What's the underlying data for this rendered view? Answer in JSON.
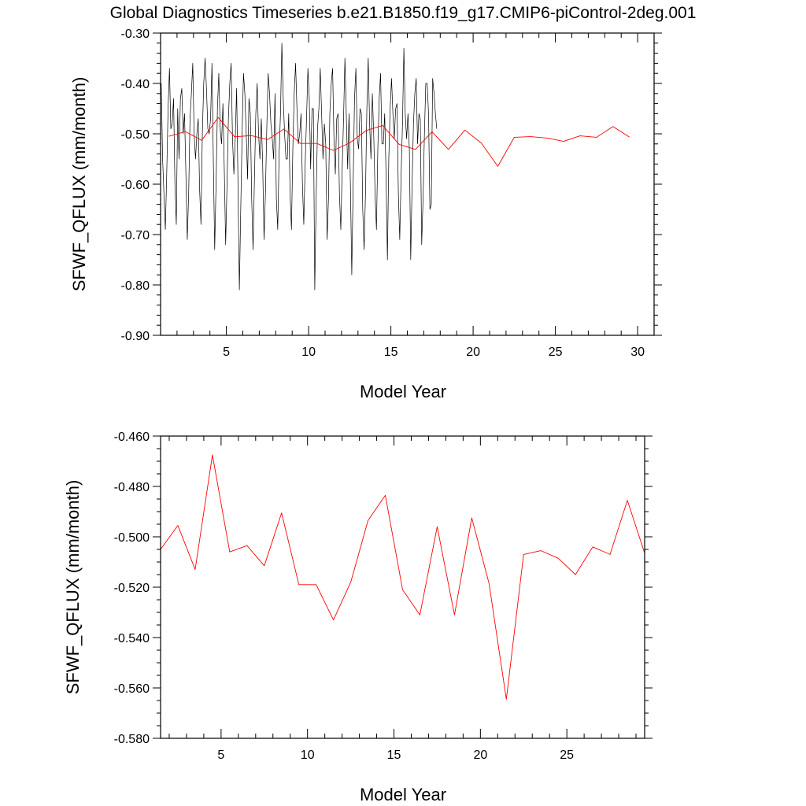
{
  "title": "Global Diagnostics Timeseries b.e21.B1850.f19_g17.CMIP6-piControl-2deg.001",
  "colors": {
    "monthly": "#000000",
    "annual": "#ff0000",
    "axis": "#000000"
  },
  "top_chart": {
    "xlabel": "Model Year",
    "ylabel": "SFWF_QFLUX (mm/month)",
    "xticks": [
      5,
      10,
      15,
      20,
      25,
      30
    ],
    "yticks": [
      "-0.30",
      "-0.40",
      "-0.50",
      "-0.60",
      "-0.70",
      "-0.80",
      "-0.90"
    ]
  },
  "bottom_chart": {
    "xlabel": "Model Year",
    "ylabel": "SFWF_QFLUX (mm/month)",
    "xticks": [
      5,
      10,
      15,
      20,
      25
    ],
    "yticks": [
      "-0.460",
      "-0.480",
      "-0.500",
      "-0.520",
      "-0.540",
      "-0.560",
      "-0.580"
    ]
  },
  "chart_data": [
    {
      "type": "line",
      "xlabel": "Model Year",
      "ylabel": "SFWF_QFLUX (mm/month)",
      "xlim": [
        1,
        31
      ],
      "ylim": [
        -0.9,
        -0.3
      ],
      "series": [
        {
          "style": "monthly (black)",
          "x_start": 1.04,
          "x_step": 0.08333,
          "values": [
            -0.4,
            -0.55,
            -0.62,
            -0.69,
            -0.58,
            -0.45,
            -0.37,
            -0.49,
            -0.48,
            -0.43,
            -0.6,
            -0.68,
            -0.45,
            -0.55,
            -0.43,
            -0.41,
            -0.5,
            -0.46,
            -0.58,
            -0.71,
            -0.62,
            -0.47,
            -0.42,
            -0.36,
            -0.5,
            -0.55,
            -0.5,
            -0.47,
            -0.61,
            -0.68,
            -0.5,
            -0.4,
            -0.35,
            -0.41,
            -0.49,
            -0.5,
            -0.47,
            -0.36,
            -0.55,
            -0.73,
            -0.6,
            -0.45,
            -0.38,
            -0.49,
            -0.52,
            -0.44,
            -0.57,
            -0.72,
            -0.6,
            -0.47,
            -0.4,
            -0.36,
            -0.51,
            -0.58,
            -0.51,
            -0.41,
            -0.6,
            -0.81,
            -0.65,
            -0.5,
            -0.38,
            -0.42,
            -0.5,
            -0.59,
            -0.43,
            -0.46,
            -0.63,
            -0.73,
            -0.59,
            -0.46,
            -0.4,
            -0.5,
            -0.55,
            -0.47,
            -0.56,
            -0.71,
            -0.62,
            -0.49,
            -0.38,
            -0.42,
            -0.48,
            -0.51,
            -0.55,
            -0.42,
            -0.63,
            -0.69,
            -0.54,
            -0.46,
            -0.32,
            -0.43,
            -0.5,
            -0.55,
            -0.55,
            -0.46,
            -0.62,
            -0.69,
            -0.53,
            -0.42,
            -0.36,
            -0.45,
            -0.52,
            -0.5,
            -0.46,
            -0.6,
            -0.68,
            -0.56,
            -0.47,
            -0.37,
            -0.43,
            -0.57,
            -0.45,
            -0.45,
            -0.81,
            -0.63,
            -0.49,
            -0.45,
            -0.37,
            -0.46,
            -0.55,
            -0.48,
            -0.52,
            -0.71,
            -0.63,
            -0.46,
            -0.4,
            -0.37,
            -0.51,
            -0.58,
            -0.47,
            -0.46,
            -0.62,
            -0.69,
            -0.57,
            -0.47,
            -0.35,
            -0.46,
            -0.57,
            -0.46,
            -0.6,
            -0.78,
            -0.6,
            -0.43,
            -0.37,
            -0.51,
            -0.53,
            -0.45,
            -0.46,
            -0.65,
            -0.73,
            -0.62,
            -0.45,
            -0.35,
            -0.48,
            -0.55,
            -0.42,
            -0.5,
            -0.62,
            -0.69,
            -0.53,
            -0.43,
            -0.38,
            -0.52,
            -0.52,
            -0.46,
            -0.58,
            -0.75,
            -0.55,
            -0.45,
            -0.39,
            -0.46,
            -0.51,
            -0.45,
            -0.44,
            -0.62,
            -0.71,
            -0.58,
            -0.48,
            -0.33,
            -0.46,
            -0.51,
            -0.46,
            -0.53,
            -0.75,
            -0.6,
            -0.48,
            -0.42,
            -0.39,
            -0.52,
            -0.46,
            -0.47,
            -0.72,
            -0.63,
            -0.5,
            -0.4,
            -0.4,
            -0.46,
            -0.65,
            -0.64,
            -0.39,
            -0.42,
            -0.46,
            -0.49
          ]
        },
        {
          "style": "annual mean (red)",
          "x_start": 1.5,
          "x_step": 1,
          "values": [
            -0.505,
            -0.4955,
            -0.513,
            -0.4675,
            -0.506,
            -0.5035,
            -0.5115,
            -0.4905,
            -0.519,
            -0.519,
            -0.533,
            -0.518,
            -0.4935,
            -0.4835,
            -0.521,
            -0.531,
            -0.496,
            -0.531,
            -0.4925,
            -0.5185,
            -0.5645,
            -0.507,
            -0.5055,
            -0.5085,
            -0.515,
            -0.504,
            -0.507,
            -0.4855,
            -0.5065
          ]
        }
      ]
    },
    {
      "type": "line",
      "xlabel": "Model Year",
      "ylabel": "SFWF_QFLUX (mm/month)",
      "xlim": [
        1.5,
        29.5
      ],
      "ylim": [
        -0.58,
        -0.46
      ],
      "series": [
        {
          "style": "annual mean (red)",
          "x_start": 1.5,
          "x_step": 1,
          "values": [
            -0.505,
            -0.4955,
            -0.513,
            -0.4675,
            -0.506,
            -0.5035,
            -0.5115,
            -0.4905,
            -0.519,
            -0.519,
            -0.533,
            -0.518,
            -0.4935,
            -0.4835,
            -0.521,
            -0.531,
            -0.496,
            -0.531,
            -0.4925,
            -0.5185,
            -0.5645,
            -0.507,
            -0.5055,
            -0.5085,
            -0.515,
            -0.504,
            -0.507,
            -0.4855,
            -0.5065
          ]
        }
      ]
    }
  ]
}
